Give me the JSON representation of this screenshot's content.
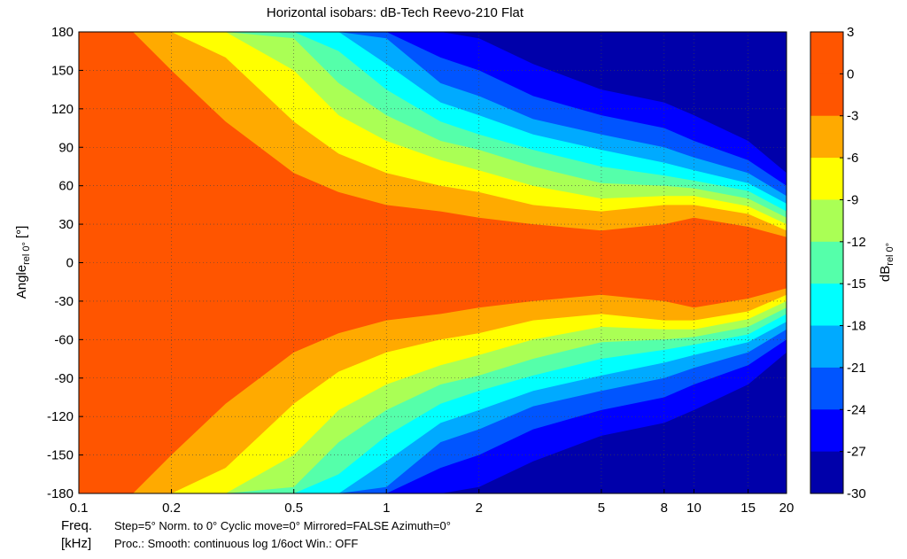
{
  "chart_data": {
    "type": "heatmap",
    "title": "Horizontal isobars: dB-Tech  Reevo-210  Flat",
    "xlabel": "Freq.",
    "xlabel_unit": "[kHz]",
    "ylabel": "Angle",
    "ylabel_sub": "rel 0°",
    "ylabel_unit": "[°]",
    "colorbar_label": "dB",
    "colorbar_sub": "rel 0°",
    "x_scale": "log",
    "xlim": [
      0.1,
      20
    ],
    "ylim": [
      -180,
      180
    ],
    "grid": true,
    "x_ticks": [
      0.1,
      0.2,
      0.5,
      1,
      2,
      5,
      8,
      10,
      15,
      20
    ],
    "x_tick_labels": [
      "0.1",
      "0.2",
      "0.5",
      "1",
      "2",
      "5",
      "8",
      "10",
      "15",
      "20"
    ],
    "y_ticks": [
      180,
      150,
      120,
      90,
      60,
      30,
      0,
      -30,
      -60,
      -90,
      -120,
      -150,
      -180
    ],
    "y_tick_labels": [
      "180",
      "150",
      "120",
      "90",
      "60",
      "30",
      "0",
      "-30",
      "-60",
      "-90",
      "-120",
      "-150",
      "-180"
    ],
    "colorbar_ticks": [
      "3",
      "0",
      "-3",
      "-6",
      "-9",
      "-12",
      "-15",
      "-18",
      "-21",
      "-24",
      "-27",
      "-30"
    ],
    "color_levels": [
      {
        "from": 0,
        "to": 3,
        "color": "#ff5500"
      },
      {
        "from": -3,
        "to": 0,
        "color": "#ff5500"
      },
      {
        "from": -6,
        "to": -3,
        "color": "#ffaa00"
      },
      {
        "from": -9,
        "to": -6,
        "color": "#ffff00"
      },
      {
        "from": -12,
        "to": -9,
        "color": "#aaff55"
      },
      {
        "from": -15,
        "to": -12,
        "color": "#55ffaa"
      },
      {
        "from": -18,
        "to": -15,
        "color": "#00ffff"
      },
      {
        "from": -21,
        "to": -18,
        "color": "#00aaff"
      },
      {
        "from": -24,
        "to": -21,
        "color": "#0055ff"
      },
      {
        "from": -27,
        "to": -24,
        "color": "#0000ff"
      },
      {
        "from": -30,
        "to": -27,
        "color": "#0000aa"
      }
    ],
    "beamwidth_half_angle": {
      "freq_khz": [
        0.1,
        0.15,
        0.2,
        0.3,
        0.5,
        0.7,
        1,
        1.5,
        2,
        3,
        5,
        8,
        10,
        15,
        20
      ],
      "minus3_deg": [
        180,
        180,
        150,
        110,
        70,
        55,
        45,
        40,
        35,
        30,
        25,
        30,
        35,
        28,
        20
      ],
      "minus6_deg": [
        180,
        180,
        180,
        160,
        110,
        85,
        70,
        60,
        55,
        45,
        40,
        45,
        45,
        38,
        25
      ],
      "minus9_deg": [
        180,
        180,
        180,
        180,
        150,
        115,
        95,
        80,
        72,
        60,
        50,
        52,
        52,
        44,
        30
      ],
      "minus12_deg": [
        180,
        180,
        180,
        180,
        175,
        140,
        115,
        95,
        88,
        75,
        62,
        60,
        58,
        50,
        35
      ],
      "minus15_deg": [
        180,
        180,
        180,
        180,
        180,
        165,
        135,
        110,
        100,
        88,
        75,
        68,
        64,
        56,
        40
      ],
      "minus18_deg": [
        180,
        180,
        180,
        180,
        180,
        180,
        155,
        125,
        115,
        100,
        88,
        78,
        72,
        62,
        46
      ],
      "minus21_deg": [
        180,
        180,
        180,
        180,
        180,
        180,
        175,
        140,
        130,
        112,
        100,
        90,
        82,
        70,
        52
      ],
      "minus24_deg": [
        180,
        180,
        180,
        180,
        180,
        180,
        180,
        160,
        150,
        130,
        115,
        105,
        95,
        80,
        60
      ],
      "minus27_deg": [
        180,
        180,
        180,
        180,
        180,
        180,
        180,
        180,
        175,
        155,
        135,
        125,
        115,
        95,
        70
      ]
    }
  },
  "footer": {
    "line1_label": "Freq.",
    "line1_text": "Step=5°   Norm. to 0°   Cyclic move=0°   Mirrored=FALSE   Azimuth=0°",
    "line2_label": "[kHz]",
    "line2_text": "Proc.: Smooth: continuous log 1/6oct    Win.: OFF"
  }
}
